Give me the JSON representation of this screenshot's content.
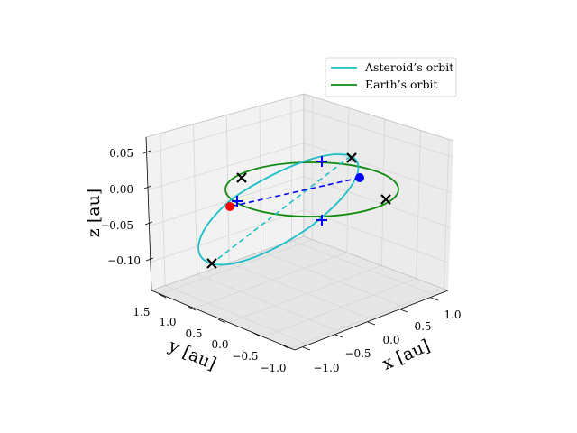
{
  "chart_data": {
    "type": "line3d",
    "axes": {
      "x": {
        "label": "x [au]",
        "ticks": [
          "−1.0",
          "−0.5",
          "0.0",
          "0.5",
          "1.0"
        ]
      },
      "y": {
        "label": "y [au]",
        "ticks": [
          "−1.0",
          "−0.5",
          "0.0",
          "0.5",
          "1.0",
          "1.5"
        ]
      },
      "z": {
        "label": "z [au]",
        "ticks": [
          "−0.10",
          "−0.05",
          "0.00",
          "0.05"
        ]
      }
    },
    "legend": {
      "placement": "upper-right",
      "entries": [
        {
          "label": "Asteroid’s orbit",
          "color": "#1bbec7"
        },
        {
          "label": "Earth’s orbit",
          "color": "#0f8a0f"
        }
      ]
    },
    "series": [
      {
        "name": "Asteroid’s orbit",
        "color": "#1bbec7"
      },
      {
        "name": "Earth’s orbit",
        "color": "#0f8a0f"
      }
    ],
    "markers": {
      "blue_dot_color": "#0000ff",
      "red_dot_color": "#ff0000",
      "cross_color": "#000000",
      "plus_color": "#0000ff"
    },
    "grid": true
  }
}
